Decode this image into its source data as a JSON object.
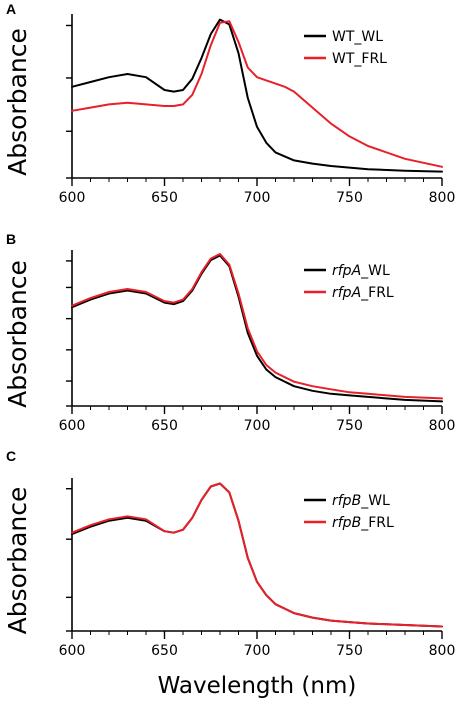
{
  "colors": {
    "wl": "#000000",
    "frl": "#e8202a",
    "axis": "#000000"
  },
  "xlabel": "Wavelength (nm)",
  "chart_data": [
    {
      "type": "line",
      "panel": "A",
      "ylabel": "Absorbance",
      "xlim": [
        600,
        800
      ],
      "ylim": [
        0,
        1
      ],
      "x_ticks": [
        600,
        650,
        700,
        750,
        800
      ],
      "legend_position": "top-right",
      "series": [
        {
          "name": "WT_WL",
          "name_italic": "",
          "name_rest": "WT_WL",
          "color": "#000000",
          "x": [
            600,
            610,
            620,
            630,
            640,
            650,
            655,
            660,
            665,
            670,
            675,
            680,
            685,
            690,
            695,
            700,
            705,
            710,
            720,
            730,
            740,
            750,
            760,
            780,
            800
          ],
          "y": [
            0.57,
            0.6,
            0.63,
            0.65,
            0.63,
            0.55,
            0.54,
            0.55,
            0.62,
            0.75,
            0.9,
            0.99,
            0.96,
            0.78,
            0.5,
            0.32,
            0.22,
            0.16,
            0.11,
            0.09,
            0.075,
            0.065,
            0.055,
            0.045,
            0.04
          ]
        },
        {
          "name": "WT_FRL",
          "name_italic": "",
          "name_rest": "WT_FRL",
          "color": "#e8202a",
          "x": [
            600,
            610,
            620,
            630,
            640,
            650,
            655,
            660,
            665,
            670,
            675,
            680,
            685,
            690,
            695,
            700,
            705,
            710,
            715,
            720,
            730,
            740,
            750,
            760,
            780,
            800
          ],
          "y": [
            0.42,
            0.44,
            0.46,
            0.47,
            0.46,
            0.45,
            0.45,
            0.46,
            0.52,
            0.65,
            0.83,
            0.97,
            0.98,
            0.85,
            0.69,
            0.63,
            0.61,
            0.59,
            0.57,
            0.54,
            0.44,
            0.34,
            0.26,
            0.2,
            0.12,
            0.07
          ]
        }
      ]
    },
    {
      "type": "line",
      "panel": "B",
      "ylabel": "Absorbance",
      "xlim": [
        600,
        800
      ],
      "ylim": [
        0,
        1
      ],
      "x_ticks": [
        600,
        650,
        700,
        750,
        800
      ],
      "legend_position": "top-right",
      "series": [
        {
          "name": "rfpA_WL",
          "name_italic": "rfpA",
          "name_rest": "_WL",
          "color": "#000000",
          "x": [
            600,
            610,
            620,
            630,
            640,
            650,
            655,
            660,
            665,
            670,
            675,
            680,
            685,
            690,
            695,
            700,
            705,
            710,
            720,
            730,
            740,
            750,
            760,
            780,
            800
          ],
          "y": [
            0.65,
            0.7,
            0.74,
            0.76,
            0.74,
            0.68,
            0.67,
            0.69,
            0.76,
            0.87,
            0.96,
            0.99,
            0.92,
            0.72,
            0.48,
            0.33,
            0.24,
            0.19,
            0.13,
            0.1,
            0.08,
            0.07,
            0.06,
            0.04,
            0.03
          ]
        },
        {
          "name": "rfpA_FRL",
          "name_italic": "rfpA",
          "name_rest": "_FRL",
          "color": "#e8202a",
          "x": [
            600,
            610,
            620,
            630,
            640,
            650,
            655,
            660,
            665,
            670,
            675,
            680,
            685,
            690,
            695,
            700,
            705,
            710,
            720,
            730,
            740,
            750,
            760,
            780,
            800
          ],
          "y": [
            0.66,
            0.71,
            0.75,
            0.77,
            0.75,
            0.69,
            0.68,
            0.7,
            0.77,
            0.88,
            0.97,
            1.0,
            0.93,
            0.74,
            0.51,
            0.36,
            0.27,
            0.22,
            0.16,
            0.13,
            0.11,
            0.09,
            0.08,
            0.06,
            0.05
          ]
        }
      ]
    },
    {
      "type": "line",
      "panel": "C",
      "ylabel": "Absorbance",
      "xlim": [
        600,
        800
      ],
      "ylim": [
        0,
        1
      ],
      "x_ticks": [
        600,
        650,
        700,
        750,
        800
      ],
      "legend_position": "top-right",
      "series": [
        {
          "name": "rfpB_WL",
          "name_italic": "rfpB",
          "name_rest": "_WL",
          "color": "#000000",
          "x": [
            600,
            610,
            620,
            630,
            640,
            650,
            655,
            660,
            665,
            670,
            675,
            680,
            685,
            690,
            695,
            700,
            705,
            710,
            720,
            730,
            740,
            750,
            760,
            780,
            800
          ],
          "y": [
            0.65,
            0.7,
            0.74,
            0.76,
            0.74,
            0.67,
            0.66,
            0.68,
            0.76,
            0.88,
            0.97,
            0.99,
            0.93,
            0.74,
            0.49,
            0.33,
            0.24,
            0.18,
            0.12,
            0.09,
            0.07,
            0.06,
            0.05,
            0.04,
            0.03
          ]
        },
        {
          "name": "rfpB_FRL",
          "name_italic": "rfpB",
          "name_rest": "_FRL",
          "color": "#e8202a",
          "x": [
            600,
            610,
            620,
            630,
            640,
            650,
            655,
            660,
            665,
            670,
            675,
            680,
            685,
            690,
            695,
            700,
            705,
            710,
            720,
            730,
            740,
            750,
            760,
            780,
            800
          ],
          "y": [
            0.66,
            0.71,
            0.75,
            0.77,
            0.75,
            0.67,
            0.66,
            0.68,
            0.76,
            0.88,
            0.97,
            0.99,
            0.93,
            0.74,
            0.49,
            0.33,
            0.24,
            0.18,
            0.12,
            0.09,
            0.07,
            0.06,
            0.05,
            0.04,
            0.03
          ]
        }
      ]
    }
  ]
}
